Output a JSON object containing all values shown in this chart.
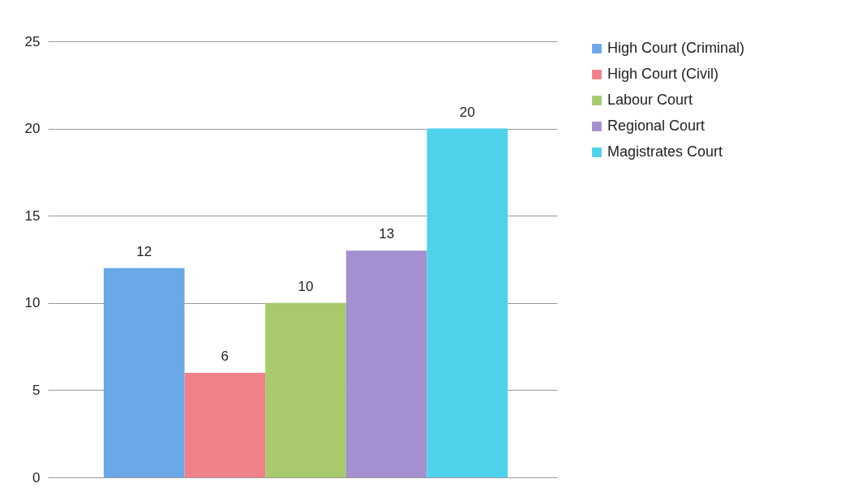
{
  "chart_data": {
    "type": "bar",
    "categories": [
      null
    ],
    "series": [
      {
        "name": "High Court (Criminal)",
        "color": "#6aa8e8",
        "values": [
          12
        ]
      },
      {
        "name": "High Court (Civil)",
        "color": "#f0808a",
        "values": [
          6
        ]
      },
      {
        "name": "Labour Court",
        "color": "#a8c96c",
        "values": [
          10
        ]
      },
      {
        "name": "Regional Court",
        "color": "#a48fd0",
        "values": [
          13
        ]
      },
      {
        "name": "Magistrates Court",
        "color": "#4ed2ec",
        "values": [
          20
        ]
      }
    ],
    "ylim": [
      0,
      25
    ],
    "yticks": [
      0,
      5,
      10,
      15,
      20,
      25
    ],
    "grid": "y",
    "legend": "right",
    "data_labels": true,
    "tick_labels": "y"
  }
}
